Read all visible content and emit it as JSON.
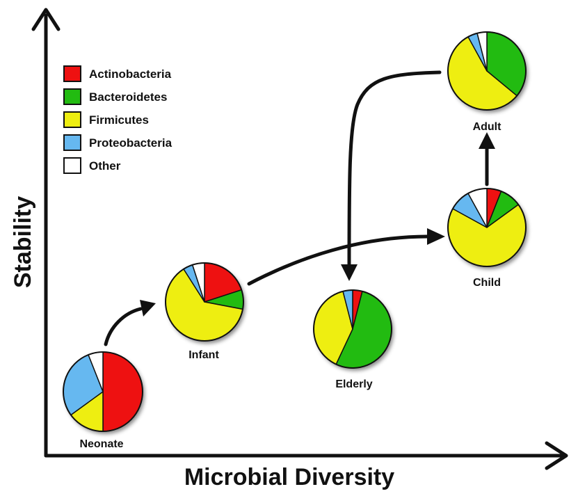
{
  "axes": {
    "x_label": "Microbial Diversity",
    "y_label": "Stability"
  },
  "legend": [
    {
      "label": "Actinobacteria",
      "color": "#ee1111"
    },
    {
      "label": "Bacteroidetes",
      "color": "#22bb11"
    },
    {
      "label": "Firmicutes",
      "color": "#eeee11"
    },
    {
      "label": "Proteobacteria",
      "color": "#66b8f0"
    },
    {
      "label": "Other",
      "color": "#ffffff"
    }
  ],
  "stages": {
    "neonate": {
      "label": "Neonate",
      "slices": [
        {
          "phylum": "Actinobacteria",
          "percent": 50
        },
        {
          "phylum": "Bacteroidetes",
          "percent": 0
        },
        {
          "phylum": "Firmicutes",
          "percent": 15
        },
        {
          "phylum": "Proteobacteria",
          "percent": 29
        },
        {
          "phylum": "Other",
          "percent": 6
        }
      ]
    },
    "infant": {
      "label": "Infant",
      "slices": [
        {
          "phylum": "Actinobacteria",
          "percent": 20
        },
        {
          "phylum": "Bacteroidetes",
          "percent": 8
        },
        {
          "phylum": "Firmicutes",
          "percent": 63
        },
        {
          "phylum": "Proteobacteria",
          "percent": 4
        },
        {
          "phylum": "Other",
          "percent": 5
        }
      ]
    },
    "elderly": {
      "label": "Elderly",
      "slices": [
        {
          "phylum": "Actinobacteria",
          "percent": 4
        },
        {
          "phylum": "Bacteroidetes",
          "percent": 53
        },
        {
          "phylum": "Firmicutes",
          "percent": 39
        },
        {
          "phylum": "Proteobacteria",
          "percent": 4
        },
        {
          "phylum": "Other",
          "percent": 0
        }
      ]
    },
    "child": {
      "label": "Child",
      "slices": [
        {
          "phylum": "Actinobacteria",
          "percent": 6
        },
        {
          "phylum": "Bacteroidetes",
          "percent": 9
        },
        {
          "phylum": "Firmicutes",
          "percent": 68
        },
        {
          "phylum": "Proteobacteria",
          "percent": 9
        },
        {
          "phylum": "Other",
          "percent": 8
        }
      ]
    },
    "adult": {
      "label": "Adult",
      "slices": [
        {
          "phylum": "Actinobacteria",
          "percent": 0
        },
        {
          "phylum": "Bacteroidetes",
          "percent": 36
        },
        {
          "phylum": "Firmicutes",
          "percent": 56
        },
        {
          "phylum": "Proteobacteria",
          "percent": 4
        },
        {
          "phylum": "Other",
          "percent": 4
        }
      ]
    }
  }
}
